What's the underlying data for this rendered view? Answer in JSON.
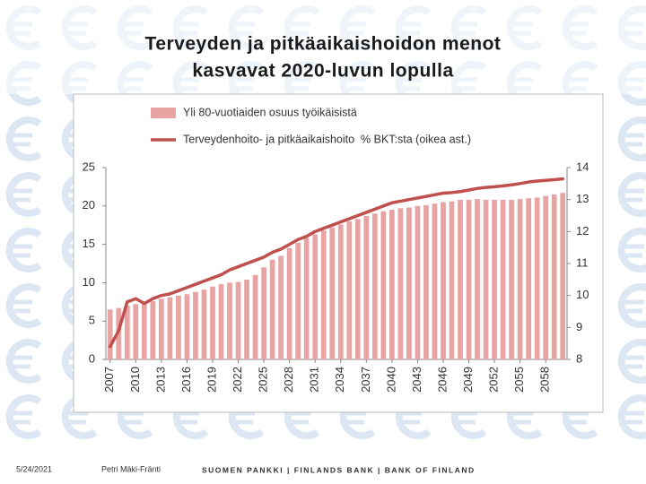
{
  "title_lines": [
    "Terveyden ja pitkäaikaishoidon menot",
    "kasvavat 2020-luvun lopulla"
  ],
  "footer": {
    "date": "5/24/2021",
    "author": "Petri Mäki-Fränti",
    "organization": "SUOMEN PANKKI | FINLANDS BANK | BANK OF FINLAND"
  },
  "chart_data": {
    "type": "combo",
    "categories": [
      "2007",
      null,
      null,
      "2010",
      null,
      null,
      "2013",
      null,
      null,
      "2016",
      null,
      null,
      "2019",
      null,
      null,
      "2022",
      null,
      null,
      "2025",
      null,
      null,
      "2028",
      null,
      null,
      "2031",
      null,
      null,
      "2034",
      null,
      null,
      "2037",
      null,
      null,
      "2040",
      null,
      null,
      "2043",
      null,
      null,
      "2046",
      null,
      null,
      "2049",
      null,
      null,
      "2052",
      null,
      null,
      "2055",
      null,
      null,
      "2058",
      null,
      null
    ],
    "series": [
      {
        "name": "Yli 80-vuotiaiden osuus työikäisistä",
        "type": "bar",
        "color": "#e8a3a3",
        "values": [
          6.5,
          6.7,
          7.0,
          7.2,
          7.3,
          7.6,
          7.9,
          8.1,
          8.3,
          8.5,
          8.8,
          9.1,
          9.5,
          9.8,
          10.0,
          10.1,
          10.4,
          11.0,
          12.0,
          13.0,
          13.5,
          14.5,
          15.2,
          15.8,
          16.3,
          16.8,
          17.2,
          17.6,
          18.0,
          18.3,
          18.7,
          19.0,
          19.3,
          19.5,
          19.7,
          19.8,
          20.0,
          20.1,
          20.3,
          20.5,
          20.6,
          20.8,
          20.8,
          20.9,
          20.8,
          20.8,
          20.8,
          20.8,
          20.9,
          21.0,
          21.1,
          21.3,
          21.5,
          21.7
        ]
      },
      {
        "name": "Terveydenhoito- ja pitkäaikaishoito  % BKT:sta (oikea ast.)",
        "type": "line",
        "axis": "y2",
        "color": "#c0504d",
        "values": [
          8.4,
          8.9,
          9.8,
          9.9,
          9.75,
          9.9,
          10.0,
          10.05,
          10.15,
          10.25,
          10.35,
          10.45,
          10.55,
          10.65,
          10.8,
          10.9,
          11.0,
          11.1,
          11.2,
          11.35,
          11.45,
          11.6,
          11.75,
          11.85,
          12.0,
          12.1,
          12.2,
          12.3,
          12.4,
          12.5,
          12.6,
          12.7,
          12.8,
          12.9,
          12.95,
          13.0,
          13.05,
          13.1,
          13.15,
          13.2,
          13.22,
          13.25,
          13.3,
          13.35,
          13.38,
          13.4,
          13.43,
          13.46,
          13.5,
          13.55,
          13.58,
          13.6,
          13.62,
          13.65
        ]
      }
    ],
    "ylim": [
      0,
      25
    ],
    "yticks": [
      0,
      5,
      10,
      15,
      20,
      25
    ],
    "y2lim": [
      8,
      14
    ],
    "y2ticks": [
      8,
      9,
      10,
      11,
      12,
      13,
      14
    ],
    "grid": false,
    "legend": "top"
  }
}
